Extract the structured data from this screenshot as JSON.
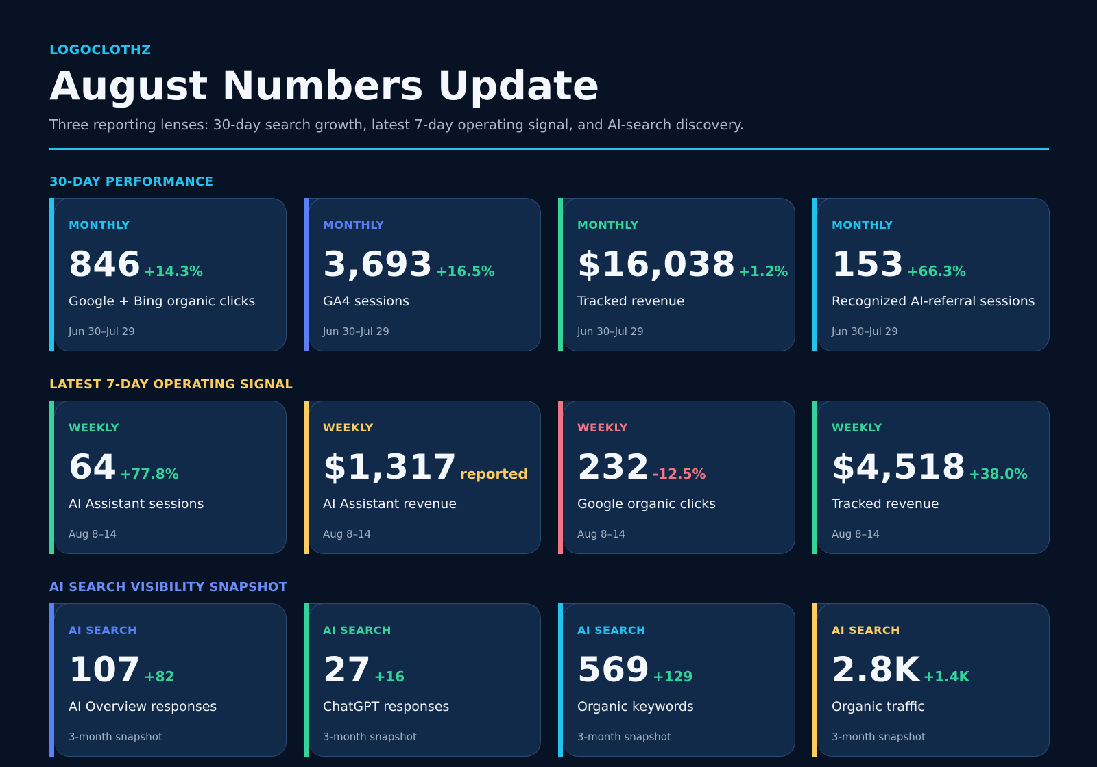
{
  "brand": "LOGOCLOTHZ",
  "title": "August Numbers Update",
  "subtitle": "Three reporting lenses: 30-day search growth, latest 7-day operating signal, and AI-search discovery.",
  "accent": "#22c4ee",
  "sections": [
    {
      "title": "30-DAY PERFORMANCE",
      "color": "#22c4ee",
      "cards": [
        {
          "tag": "MONTHLY",
          "accent": "#22c4ee",
          "value": "846",
          "delta": "+14.3%",
          "delta_color": "#34d399",
          "metric": "Google + Bing organic clicks",
          "period": "Jun 30–Jul 29"
        },
        {
          "tag": "MONTHLY",
          "accent": "#5b7ff5",
          "value": "3,693",
          "delta": "+16.5%",
          "delta_color": "#34d399",
          "metric": "GA4 sessions",
          "period": "Jun 30–Jul 29"
        },
        {
          "tag": "MONTHLY",
          "accent": "#34d399",
          "value": "$16,038",
          "delta": "+1.2%",
          "delta_color": "#34d399",
          "metric": "Tracked revenue",
          "period": "Jun 30–Jul 29"
        },
        {
          "tag": "MONTHLY",
          "accent": "#22c4ee",
          "value": "153",
          "delta": "+66.3%",
          "delta_color": "#34d399",
          "metric": "Recognized AI-referral sessions",
          "period": "Jun 30–Jul 29"
        }
      ]
    },
    {
      "title": "LATEST 7-DAY OPERATING SIGNAL",
      "color": "#fbcd60",
      "cards": [
        {
          "tag": "WEEKLY",
          "accent": "#34d399",
          "value": "64",
          "delta": "+77.8%",
          "delta_color": "#34d399",
          "metric": "AI Assistant sessions",
          "period": "Aug 8–14"
        },
        {
          "tag": "WEEKLY",
          "accent": "#fbcd60",
          "value": "$1,317",
          "delta": "reported",
          "delta_color": "#fbcd60",
          "metric": "AI Assistant revenue",
          "period": "Aug 8–14"
        },
        {
          "tag": "WEEKLY",
          "accent": "#f17583",
          "value": "232",
          "delta": "-12.5%",
          "delta_color": "#f17583",
          "metric": "Google organic clicks",
          "period": "Aug 8–14"
        },
        {
          "tag": "WEEKLY",
          "accent": "#34d399",
          "value": "$4,518",
          "delta": "+38.0%",
          "delta_color": "#34d399",
          "metric": "Tracked revenue",
          "period": "Aug 8–14"
        }
      ]
    },
    {
      "title": "AI SEARCH VISIBILITY SNAPSHOT",
      "color": "#6b8ef7",
      "cards": [
        {
          "tag": "AI SEARCH",
          "accent": "#5b7ff5",
          "value": "107",
          "delta": "+82",
          "delta_color": "#34d399",
          "metric": "AI Overview responses",
          "period": "3-month snapshot"
        },
        {
          "tag": "AI SEARCH",
          "accent": "#34d399",
          "value": "27",
          "delta": "+16",
          "delta_color": "#34d399",
          "metric": "ChatGPT responses",
          "period": "3-month snapshot"
        },
        {
          "tag": "AI SEARCH",
          "accent": "#22c4ee",
          "value": "569",
          "delta": "+129",
          "delta_color": "#34d399",
          "metric": "Organic keywords",
          "period": "3-month snapshot"
        },
        {
          "tag": "AI SEARCH",
          "accent": "#fbcd60",
          "value": "2.8K",
          "delta": "+1.4K",
          "delta_color": "#34d399",
          "metric": "Organic traffic",
          "period": "3-month snapshot"
        }
      ]
    }
  ]
}
